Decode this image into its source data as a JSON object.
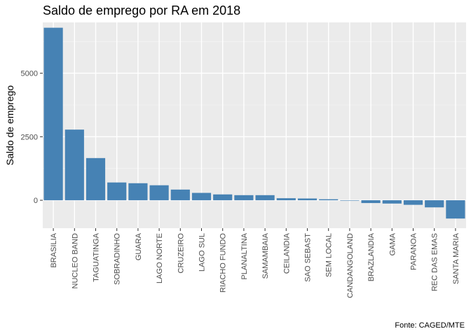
{
  "chart_data": {
    "type": "bar",
    "title": "Saldo de emprego por RA em 2018",
    "ylabel": "Saldo de emprego",
    "xlabel": "",
    "caption": "Fonte: CAGED/MTE",
    "categories": [
      "BRASILIA",
      "NUCLEO BAND",
      "TAGUATINGA",
      "SOBRADINHO",
      "GUARA",
      "LAGO NORTE",
      "CRUZEIRO",
      "LAGO SUL",
      "RIACHO FUNDO",
      "PLANALTINA",
      "SAMAMBAIA",
      "CEILANDIA",
      "SAO SEBAST",
      "SEM LOCAL",
      "CANDANGOLAND",
      "BRAZLANDIA",
      "GAMA",
      "PARANOA",
      "REC DAS EMAS",
      "SANTA MARIA"
    ],
    "values": [
      6790,
      2780,
      1660,
      700,
      670,
      590,
      420,
      290,
      230,
      200,
      200,
      80,
      70,
      40,
      -10,
      -110,
      -130,
      -180,
      -280,
      -720
    ],
    "ylim": [
      -1100,
      7000
    ],
    "yticks": [
      0,
      2500,
      5000
    ],
    "grid": true,
    "legend": "none",
    "colors": {
      "bar": "#4682B4",
      "panel": "#EBEBEB",
      "grid_major": "#FFFFFF",
      "text": "#4D4D4D"
    }
  }
}
